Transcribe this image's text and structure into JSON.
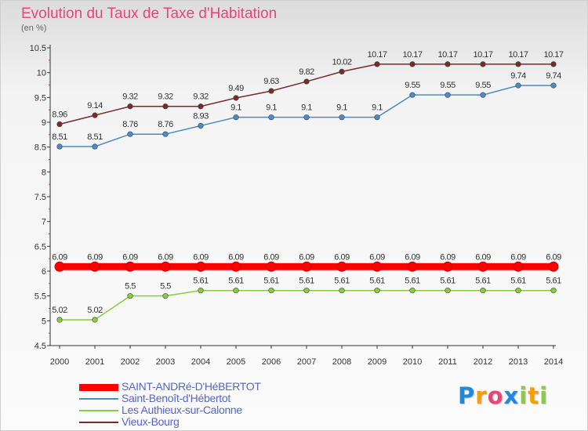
{
  "header": {
    "title": "Evolution du Taux de Taxe d'Habitation",
    "unit": "(en %)"
  },
  "chart_data": {
    "type": "line",
    "title": "Evolution du Taux de Taxe d'Habitation",
    "ylabel": "(en %)",
    "xlabel": "",
    "x": [
      2000,
      2001,
      2002,
      2003,
      2004,
      2005,
      2006,
      2007,
      2008,
      2009,
      2010,
      2011,
      2012,
      2013,
      2014
    ],
    "ylim": [
      4.5,
      10.5
    ],
    "yticks": [
      4.5,
      5,
      5.5,
      6,
      6.5,
      7,
      7.5,
      8,
      8.5,
      9,
      9.5,
      10,
      10.5
    ],
    "grid": false,
    "legend_position": "bottom-left",
    "series": [
      {
        "name": "SAINT-ANDRé-D'HéBERTOT",
        "color": "#ff0000",
        "values": [
          6.09,
          6.09,
          6.09,
          6.09,
          6.09,
          6.09,
          6.09,
          6.09,
          6.09,
          6.09,
          6.09,
          6.09,
          6.09,
          6.09,
          6.09
        ],
        "labels": [
          "6.09",
          "6.09",
          "6.09",
          "6.09",
          "6.09",
          "6.09",
          "6.09",
          "6.09",
          "6.09",
          "6.09",
          "6.09",
          "6.09",
          "6.09",
          "6.09",
          "6.09"
        ]
      },
      {
        "name": "Saint-Benoît-d'Hébertot",
        "color": "#4a8cc8",
        "values": [
          8.51,
          8.51,
          8.76,
          8.76,
          8.93,
          9.1,
          9.1,
          9.1,
          9.1,
          9.1,
          9.55,
          9.55,
          9.55,
          9.74,
          9.74
        ],
        "labels": [
          "8.51",
          "8.51",
          "8.76",
          "8.76",
          "8.93",
          "9.1",
          "9.1",
          "9.1",
          "9.1",
          "9.1",
          "9.55",
          "9.55",
          "9.55",
          "9.74",
          "9.74"
        ]
      },
      {
        "name": "Les Authieux-sur-Calonne",
        "color": "#88cc44",
        "values": [
          5.02,
          5.02,
          5.5,
          5.5,
          5.61,
          5.61,
          5.61,
          5.61,
          5.61,
          5.61,
          5.61,
          5.61,
          5.61,
          5.61,
          5.61
        ],
        "labels": [
          "5.02",
          "5.02",
          "5.5",
          "5.5",
          "5.61",
          "5.61",
          "5.61",
          "5.61",
          "5.61",
          "5.61",
          "5.61",
          "5.61",
          "5.61",
          "5.61",
          "5.61"
        ]
      },
      {
        "name": "Vieux-Bourg",
        "color": "#7a2a2a",
        "values": [
          8.96,
          9.14,
          9.32,
          9.32,
          9.32,
          9.49,
          9.63,
          9.82,
          10.02,
          10.17,
          10.17,
          10.17,
          10.17,
          10.17,
          10.17
        ],
        "labels": [
          "8.96",
          "9.14",
          "9.32",
          "9.32",
          "9.32",
          "9.49",
          "9.63",
          "9.82",
          "10.02",
          "10.17",
          "10.17",
          "10.17",
          "10.17",
          "10.17",
          "10.17"
        ]
      }
    ]
  },
  "branding": {
    "logo_letters": [
      "P",
      "r",
      "o",
      "x",
      "i",
      "t",
      "i"
    ],
    "logo_colors": [
      "#2288dd",
      "#f5a000",
      "#e8457a",
      "#2288dd",
      "#88cc44",
      "#f5a000",
      "#88cc44"
    ]
  }
}
